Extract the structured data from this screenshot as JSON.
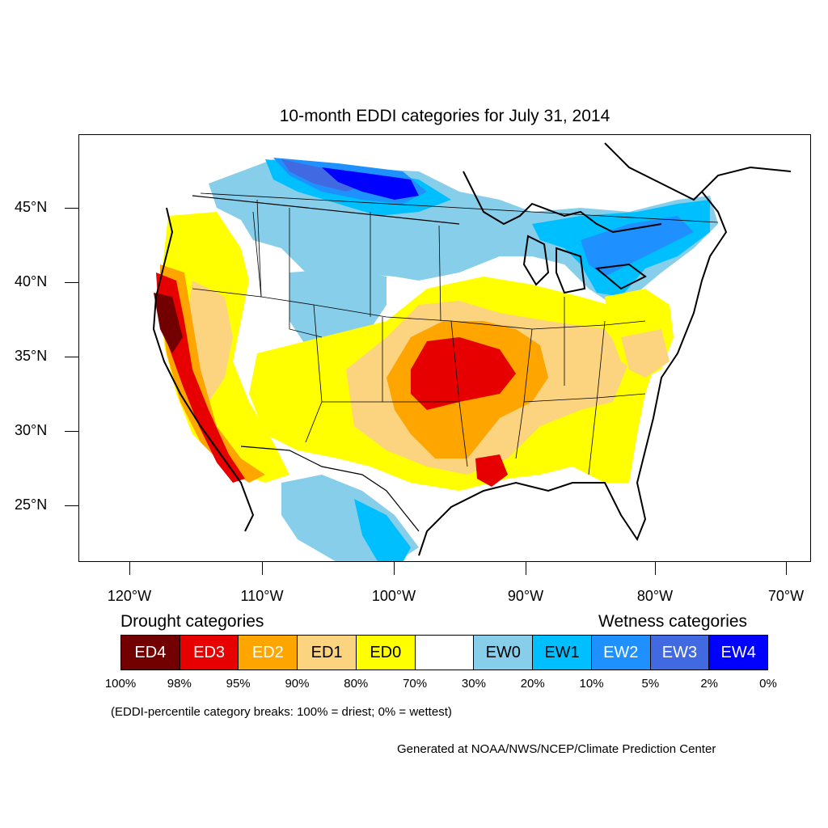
{
  "title": "10-month EDDI categories for July 31, 2014",
  "map": {
    "lat_labels": [
      "45°N",
      "40°N",
      "35°N",
      "30°N",
      "25°N"
    ],
    "lon_labels": [
      "120°W",
      "110°W",
      "100°W",
      "90°W",
      "80°W",
      "70°W"
    ]
  },
  "legend": {
    "drought_title": "Drought categories",
    "wetness_title": "Wetness categories",
    "categories": [
      {
        "label": "ED4",
        "color": "#730000",
        "text_color": "#ffffff"
      },
      {
        "label": "ED3",
        "color": "#e60000",
        "text_color": "#ffffff"
      },
      {
        "label": "ED2",
        "color": "#ffa500",
        "text_color": "#ffffff"
      },
      {
        "label": "ED1",
        "color": "#fcd37f",
        "text_color": "#000000"
      },
      {
        "label": "ED0",
        "color": "#ffff00",
        "text_color": "#000000"
      },
      {
        "label": "",
        "color": "#ffffff",
        "text_color": "#000000"
      },
      {
        "label": "EW0",
        "color": "#87ceeb",
        "text_color": "#000000"
      },
      {
        "label": "EW1",
        "color": "#00bfff",
        "text_color": "#000000"
      },
      {
        "label": "EW2",
        "color": "#1e90ff",
        "text_color": "#ffffff"
      },
      {
        "label": "EW3",
        "color": "#4169e1",
        "text_color": "#ffffff"
      },
      {
        "label": "EW4",
        "color": "#0000ff",
        "text_color": "#ffffff"
      }
    ],
    "breaks": [
      "100%",
      "98%",
      "95%",
      "90%",
      "80%",
      "70%",
      "30%",
      "20%",
      "10%",
      "5%",
      "2%",
      "0%"
    ]
  },
  "note": "(EDDI-percentile category breaks: 100% = driest; 0% = wettest)",
  "credit": "Generated at NOAA/NWS/NCEP/Climate Prediction Center"
}
